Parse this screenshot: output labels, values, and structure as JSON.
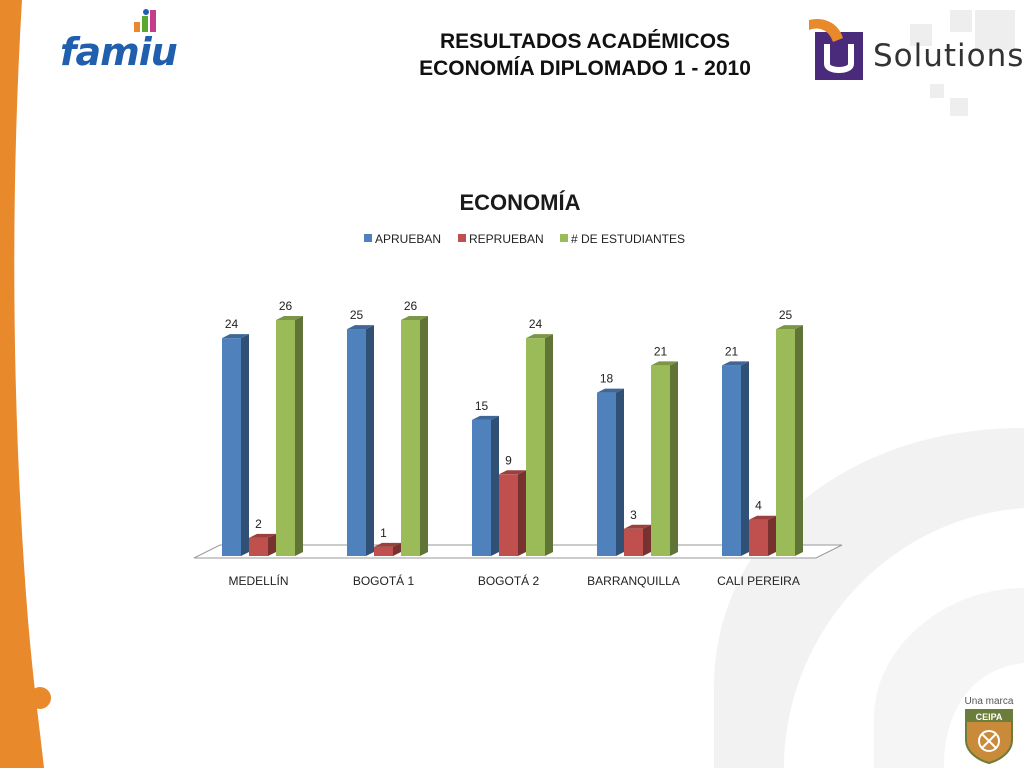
{
  "header": {
    "title_line1": "RESULTADOS ACADÉMICOS",
    "title_line2": "ECONOMÍA  DIPLOMADO 1 - 2010"
  },
  "logos": {
    "left_word": "famiu",
    "right_word": "Solutions",
    "bottom_tagline": "Una marca",
    "bottom_seal_text": "CEIPA"
  },
  "colors": {
    "accent_orange": "#e8892b",
    "logo_blue": "#1f5fae",
    "logo_purple": "#4a2a7a"
  },
  "chart_data": {
    "type": "bar",
    "title": "ECONOMÍA",
    "categories": [
      "MEDELLÍN",
      "BOGOTÁ 1",
      "BOGOTÁ 2",
      "BARRANQUILLA",
      "CALI PEREIRA"
    ],
    "series": [
      {
        "name": "APRUEBAN",
        "values": [
          24,
          25,
          15,
          18,
          21
        ],
        "color": "#4f81bd"
      },
      {
        "name": "REPRUEBAN",
        "values": [
          2,
          1,
          9,
          3,
          4
        ],
        "color": "#c0504d"
      },
      {
        "name": "# DE ESTUDIANTES",
        "values": [
          26,
          26,
          24,
          21,
          25
        ],
        "color": "#9bbb59"
      }
    ],
    "ylim": [
      0,
      26
    ],
    "legend_position": "top",
    "grid": false,
    "three_d": true
  }
}
